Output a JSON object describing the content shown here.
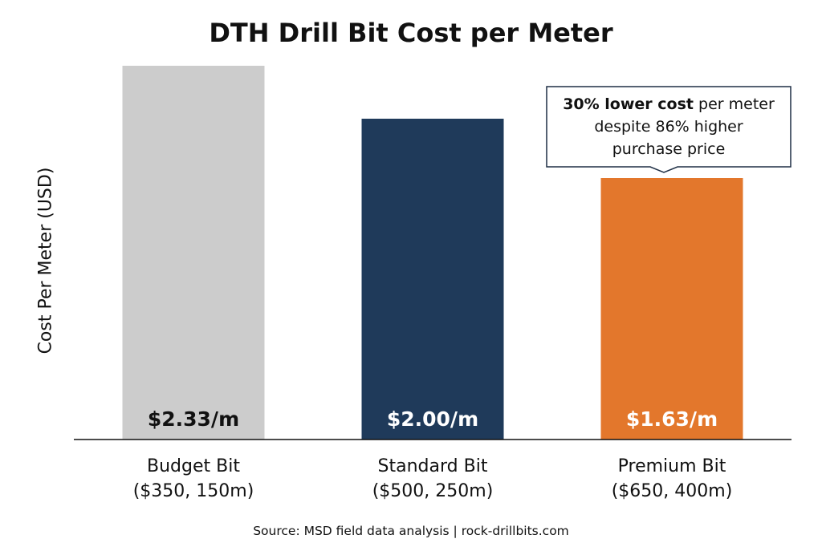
{
  "chart_data": {
    "type": "bar",
    "title": "DTH Drill Bit Cost per Meter",
    "ylabel": "Cost Per Meter (USD)",
    "xlabel": "",
    "categories": [
      {
        "name": "Budget Bit",
        "detail": "($350, 150m)"
      },
      {
        "name": "Standard Bit",
        "detail": "($500, 250m)"
      },
      {
        "name": "Premium Bit",
        "detail": "($650, 400m)"
      }
    ],
    "values": [
      2.33,
      2.0,
      1.63
    ],
    "value_labels": [
      "$2.33/m",
      "$2.00/m",
      "$1.63/m"
    ],
    "ylim": [
      0,
      2.5
    ],
    "grid": false,
    "colors": [
      "#cccccc",
      "#1f3a5a",
      "#e3772c"
    ],
    "label_colors": [
      "#111111",
      "#ffffff",
      "#ffffff"
    ],
    "annotation": {
      "bold": "30% lower cost",
      "rest": " per meter",
      "line2": "despite 86% higher",
      "line3": "purchase price",
      "target_index": 2
    },
    "source": "Source: MSD field data analysis | rock-drillbits.com"
  }
}
